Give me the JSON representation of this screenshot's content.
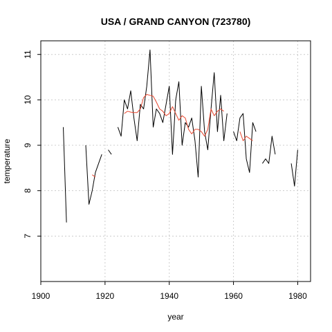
{
  "chart_data": {
    "type": "line",
    "title": "USA / GRAND CANYON (723780)",
    "xlabel": "year",
    "ylabel": "temperature",
    "xlim": [
      1900,
      1984
    ],
    "ylim": [
      6,
      11.3
    ],
    "x_ticks": [
      1900,
      1920,
      1940,
      1960,
      1980
    ],
    "y_ticks": [
      7,
      8,
      9,
      10,
      11
    ],
    "grid": true,
    "series": [
      {
        "color": "#000000",
        "points": [
          [
            1907,
            9.4
          ],
          [
            1908,
            7.3
          ],
          [
            1909,
            null
          ],
          [
            1914,
            9.0
          ],
          [
            1915,
            7.7
          ],
          [
            1916,
            8.0
          ],
          [
            1917,
            8.4
          ],
          [
            1919,
            8.8
          ],
          [
            1920,
            null
          ],
          [
            1921,
            8.9
          ],
          [
            1922,
            8.8
          ],
          [
            1923,
            null
          ],
          [
            1924,
            9.4
          ],
          [
            1925,
            9.2
          ],
          [
            1926,
            10.0
          ],
          [
            1927,
            9.8
          ],
          [
            1928,
            10.2
          ],
          [
            1929,
            9.6
          ],
          [
            1930,
            9.1
          ],
          [
            1931,
            9.9
          ],
          [
            1932,
            9.8
          ],
          [
            1933,
            10.3
          ],
          [
            1934,
            11.1
          ],
          [
            1935,
            9.4
          ],
          [
            1936,
            9.8
          ],
          [
            1937,
            9.7
          ],
          [
            1938,
            9.5
          ],
          [
            1939,
            9.9
          ],
          [
            1940,
            10.3
          ],
          [
            1941,
            8.8
          ],
          [
            1942,
            10.0
          ],
          [
            1943,
            10.4
          ],
          [
            1944,
            9.0
          ],
          [
            1945,
            9.5
          ],
          [
            1946,
            9.4
          ],
          [
            1947,
            9.6
          ],
          [
            1948,
            9.1
          ],
          [
            1949,
            8.3
          ],
          [
            1950,
            10.3
          ],
          [
            1951,
            9.3
          ],
          [
            1952,
            8.9
          ],
          [
            1953,
            9.8
          ],
          [
            1954,
            10.6
          ],
          [
            1955,
            9.3
          ],
          [
            1956,
            10.1
          ],
          [
            1957,
            9.1
          ],
          [
            1958,
            9.7
          ],
          [
            1959,
            null
          ],
          [
            1960,
            9.3
          ],
          [
            1961,
            9.1
          ],
          [
            1962,
            9.6
          ],
          [
            1963,
            9.7
          ],
          [
            1964,
            8.7
          ],
          [
            1965,
            8.4
          ],
          [
            1966,
            9.5
          ],
          [
            1967,
            9.3
          ],
          [
            1968,
            null
          ],
          [
            1969,
            8.6
          ],
          [
            1970,
            8.7
          ],
          [
            1971,
            8.6
          ],
          [
            1972,
            9.2
          ],
          [
            1973,
            8.8
          ],
          [
            1974,
            null
          ],
          [
            1978,
            8.6
          ],
          [
            1979,
            8.1
          ],
          [
            1980,
            8.9
          ]
        ]
      },
      {
        "color": "#e8462e",
        "points": [
          [
            1916,
            8.35
          ],
          [
            1917,
            8.3
          ],
          [
            1918,
            null
          ],
          [
            1926,
            9.7
          ],
          [
            1927,
            9.75
          ],
          [
            1928,
            9.73
          ],
          [
            1929,
            9.72
          ],
          [
            1930,
            9.72
          ],
          [
            1931,
            9.8
          ],
          [
            1932,
            10.05
          ],
          [
            1933,
            10.12
          ],
          [
            1934,
            10.1
          ],
          [
            1935,
            10.08
          ],
          [
            1936,
            9.95
          ],
          [
            1937,
            9.8
          ],
          [
            1938,
            9.75
          ],
          [
            1939,
            9.65
          ],
          [
            1940,
            9.7
          ],
          [
            1941,
            9.85
          ],
          [
            1942,
            9.7
          ],
          [
            1943,
            9.55
          ],
          [
            1944,
            9.65
          ],
          [
            1945,
            9.6
          ],
          [
            1946,
            9.35
          ],
          [
            1947,
            9.25
          ],
          [
            1948,
            9.35
          ],
          [
            1949,
            9.35
          ],
          [
            1950,
            9.3
          ],
          [
            1951,
            9.2
          ],
          [
            1952,
            9.35
          ],
          [
            1953,
            9.8
          ],
          [
            1954,
            9.65
          ],
          [
            1955,
            9.75
          ],
          [
            1956,
            9.8
          ],
          [
            1957,
            9.75
          ],
          [
            1958,
            null
          ],
          [
            1962,
            9.3
          ],
          [
            1963,
            9.1
          ],
          [
            1964,
            9.2
          ],
          [
            1965,
            9.15
          ],
          [
            1966,
            9.1
          ]
        ]
      }
    ]
  }
}
